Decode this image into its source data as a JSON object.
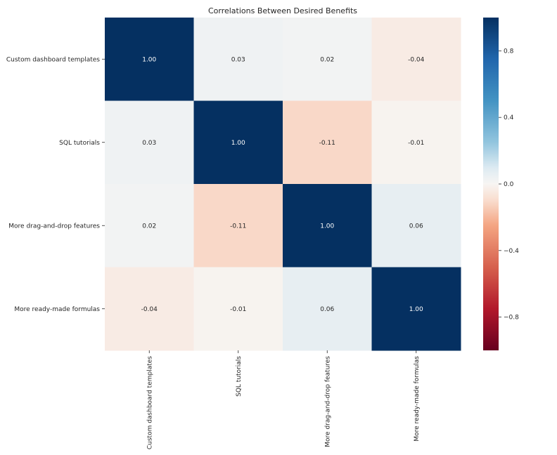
{
  "chart_data": {
    "type": "heatmap",
    "title": "Correlations Between Desired Benefits",
    "row_labels": [
      "Custom dashboard templates",
      "SQL tutorials",
      "More drag-and-drop features",
      "More ready-made formulas"
    ],
    "col_labels": [
      "Custom dashboard templates",
      "SQL tutorials",
      "More drag-and-drop features",
      "More ready-made formulas"
    ],
    "values": [
      [
        1.0,
        0.03,
        0.02,
        -0.04
      ],
      [
        0.03,
        1.0,
        -0.11,
        -0.01
      ],
      [
        0.02,
        -0.11,
        1.0,
        0.06
      ],
      [
        -0.04,
        -0.01,
        0.06,
        1.0
      ]
    ],
    "annotation_format": "2 decimals",
    "vmin": -1.0,
    "vmax": 1.0,
    "colormap": "RdBu",
    "colorbar": {
      "ticks": [
        0.8,
        0.4,
        0.0,
        -0.4,
        -0.8
      ],
      "tick_labels": [
        "0.8",
        "0.4",
        "0.0",
        "−0.4",
        "−0.8"
      ]
    }
  }
}
